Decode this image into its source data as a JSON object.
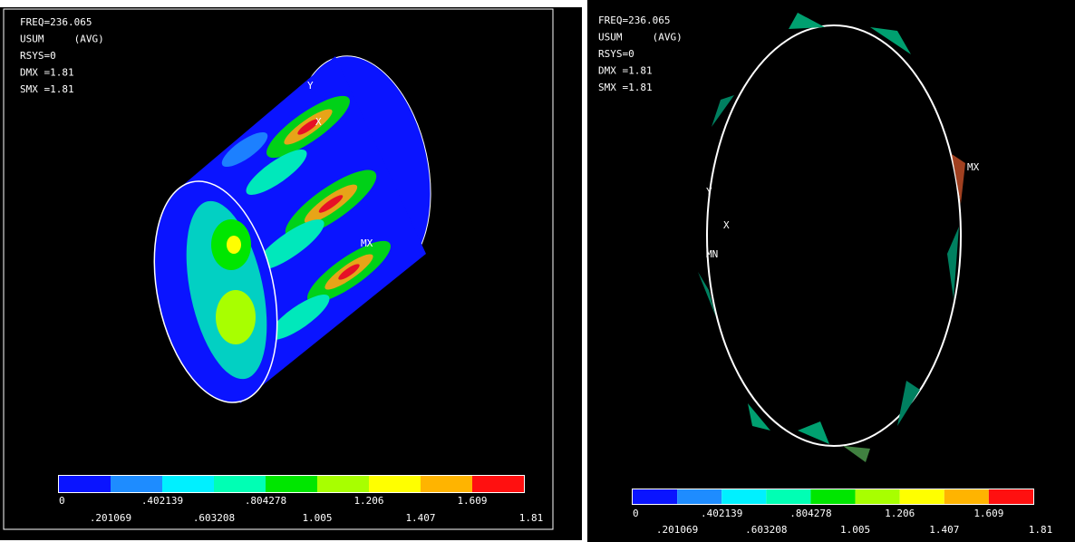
{
  "panels": [
    {
      "lines": [
        "FREQ=236.065",
        "USUM     (AVG)",
        "RSYS=0",
        "DMX =1.81",
        "SMX =1.81"
      ],
      "markers": [
        "Y",
        "X",
        "MX"
      ]
    },
    {
      "lines": [
        "FREQ=236.065",
        "USUM     (AVG)",
        "RSYS=0",
        "DMX =1.81",
        "SMX =1.81"
      ],
      "markers": [
        "Y",
        "X",
        "MX",
        "MN"
      ]
    }
  ],
  "legend": {
    "colors": [
      "#0a14ff",
      "#1e8cff",
      "#00f0ff",
      "#00ffb4",
      "#00e600",
      "#a8ff00",
      "#ffff00",
      "#ffb400",
      "#ff1010"
    ],
    "labels": [
      "0",
      ".201069",
      ".402139",
      ".603208",
      ".804278",
      "1.005",
      "1.206",
      "1.407",
      "1.609",
      "1.81"
    ]
  }
}
